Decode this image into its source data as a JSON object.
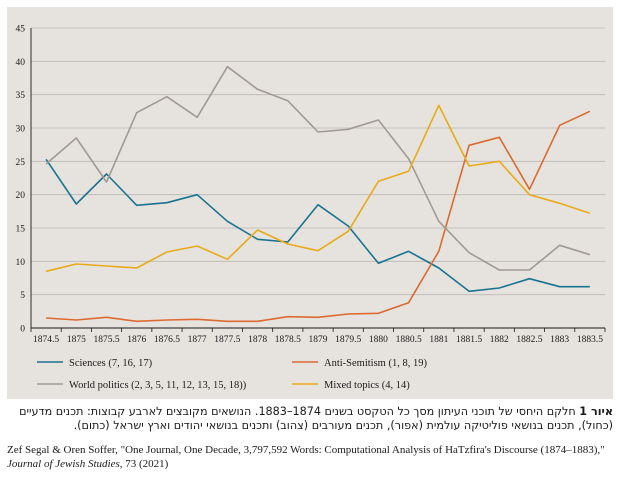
{
  "chart_data": {
    "type": "line",
    "title": "",
    "xlabel": "",
    "ylabel": "",
    "ylim": [
      0,
      45
    ],
    "yticks": [
      0,
      5,
      10,
      15,
      20,
      25,
      30,
      35,
      40,
      45
    ],
    "grid": "horizontal",
    "x": [
      1874.5,
      1875,
      1875.5,
      1876,
      1876.5,
      1877,
      1877.5,
      1878,
      1878.5,
      1879,
      1879.5,
      1880,
      1880.5,
      1881,
      1881.5,
      1882,
      1882.5,
      1883,
      1883.5
    ],
    "xtick_labels": [
      "1874.5",
      "1875",
      "1875.5",
      "1876",
      "1876.5",
      "1877",
      "1877.5",
      "1878",
      "1878.5",
      "1879",
      "1879.5",
      "1880",
      "1880.5",
      "1881",
      "1881.5",
      "1882",
      "1882.5",
      "1883",
      "1883.5"
    ],
    "series": [
      {
        "name": "Sciences (7, 16, 17)",
        "color": "#1a7390",
        "values": [
          25.3,
          18.6,
          23.1,
          18.4,
          18.8,
          20.0,
          16.0,
          13.3,
          12.9,
          18.5,
          15.3,
          9.7,
          11.5,
          9.0,
          5.5,
          6.0,
          7.4,
          6.2,
          6.2
        ]
      },
      {
        "name": "Anti-Semitism (1, 8, 19)",
        "color": "#dc6a30",
        "values": [
          1.5,
          1.2,
          1.6,
          1.0,
          1.2,
          1.3,
          1.0,
          1.0,
          1.7,
          1.6,
          2.1,
          2.2,
          3.8,
          11.5,
          27.4,
          28.6,
          20.8,
          30.4,
          32.5
        ]
      },
      {
        "name": "World politics (2, 3, 5, 11, 12, 13, 15, 18))",
        "color": "#a09a94",
        "values": [
          24.6,
          28.5,
          21.9,
          32.3,
          34.7,
          31.6,
          39.2,
          35.8,
          34.1,
          29.4,
          29.8,
          31.2,
          25.4,
          16.0,
          11.3,
          8.7,
          8.7,
          12.4,
          11.0
        ]
      },
      {
        "name": "Mixed topics (4, 14)",
        "color": "#e8aa18",
        "values": [
          8.5,
          9.6,
          9.3,
          9.0,
          11.4,
          12.3,
          10.3,
          14.7,
          12.6,
          11.6,
          14.5,
          22.0,
          23.5,
          33.4,
          24.3,
          25.0,
          20.0,
          18.7,
          17.2
        ]
      }
    ]
  },
  "caption": {
    "label": "איור 1",
    "text": " חלקם היחסי של תוכני העיתון מסך כל הטקסט בשנים 1874–1883. הנושאים מקובצים לארבע קבוצות: תכנים מדעיים (כחול), תכנים בנושאי פוליטיקה עולמית (אפור), תכנים מעורבים (צהוב) ותכנים בנושאי יהודים וארץ ישראל (כתום)."
  },
  "citation": {
    "text": "Zef Segal & Oren Soffer, \"One Journal, One Decade, 3,797,592 Words: Computational Analysis of HaTzfira's Discourse (1874–1883),\" ",
    "journal": "Journal of Jewish Studies",
    "tail": ", 73 (2021)"
  }
}
